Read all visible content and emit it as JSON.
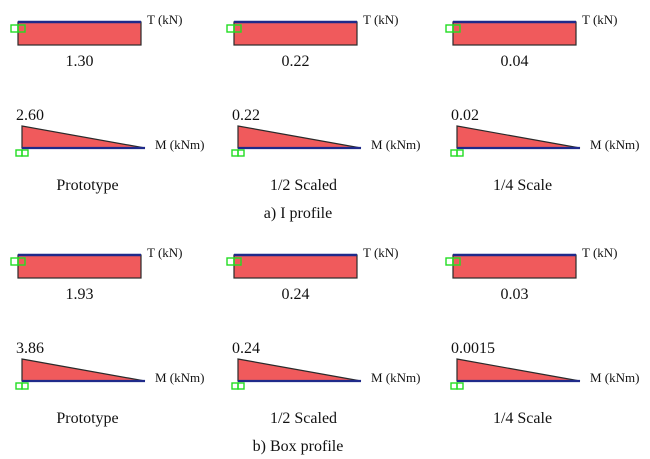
{
  "colors": {
    "fill": "#f05a5c",
    "outline": "#2a2a2a",
    "axis": "#1f2a8a",
    "support": "#22dd22",
    "text": "#111111"
  },
  "axis_labels": {
    "shear": "T (kN)",
    "moment": "M (kNm)"
  },
  "chart_data": [
    {
      "type": "diagram",
      "caption": "a) I profile",
      "panels": [
        {
          "name": "Prototype",
          "shear": "1.30",
          "moment": "2.60"
        },
        {
          "name": "1/2 Scaled",
          "shear": "0.22",
          "moment": "0.22"
        },
        {
          "name": "1/4 Scale",
          "shear": "0.04",
          "moment": "0.02"
        }
      ]
    },
    {
      "type": "diagram",
      "caption": "b) Box profile",
      "panels": [
        {
          "name": "Prototype",
          "shear": "1.93",
          "moment": "3.86"
        },
        {
          "name": "1/2 Scaled",
          "shear": "0.24",
          "moment": "0.24"
        },
        {
          "name": "1/4 Scale",
          "shear": "0.03",
          "moment": "0.0015"
        }
      ]
    }
  ]
}
